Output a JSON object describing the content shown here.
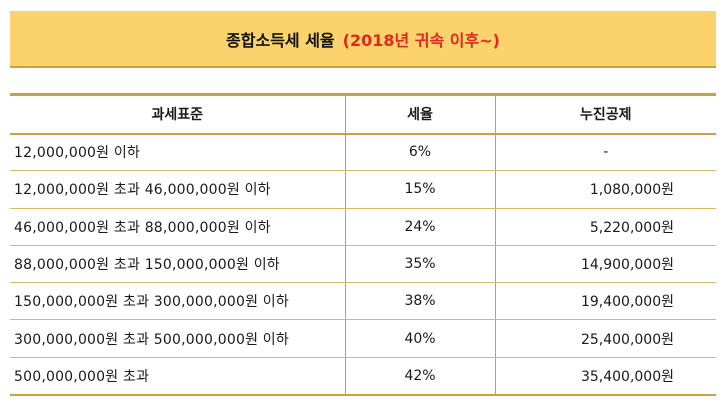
{
  "title": {
    "main": "종합소득세 세율",
    "sub": "(2018년 귀속 이후~)"
  },
  "table": {
    "headers": [
      "과세표준",
      "세율",
      "누진공제"
    ],
    "rows": [
      {
        "base": "12,000,000원 이하",
        "rate": "6%",
        "deduction": "-"
      },
      {
        "base": "12,000,000원 초과 46,000,000원 이하",
        "rate": "15%",
        "deduction": "1,080,000원"
      },
      {
        "base": "46,000,000원 초과 88,000,000원 이하",
        "rate": "24%",
        "deduction": "5,220,000원"
      },
      {
        "base": "88,000,000원 초과 150,000,000원 이하",
        "rate": "35%",
        "deduction": "14,900,000원"
      },
      {
        "base": "150,000,000원 초과 300,000,000원 이하",
        "rate": "38%",
        "deduction": "19,400,000원"
      },
      {
        "base": "300,000,000원 초과 500,000,000원 이하",
        "rate": "40%",
        "deduction": "25,400,000원"
      },
      {
        "base": "500,000,000원 초과",
        "rate": "42%",
        "deduction": "35,400,000원"
      }
    ]
  },
  "colors": {
    "banner_bg": "#fcd26c",
    "accent_red": "#e0291c",
    "border_gold": "#c9a23c"
  }
}
